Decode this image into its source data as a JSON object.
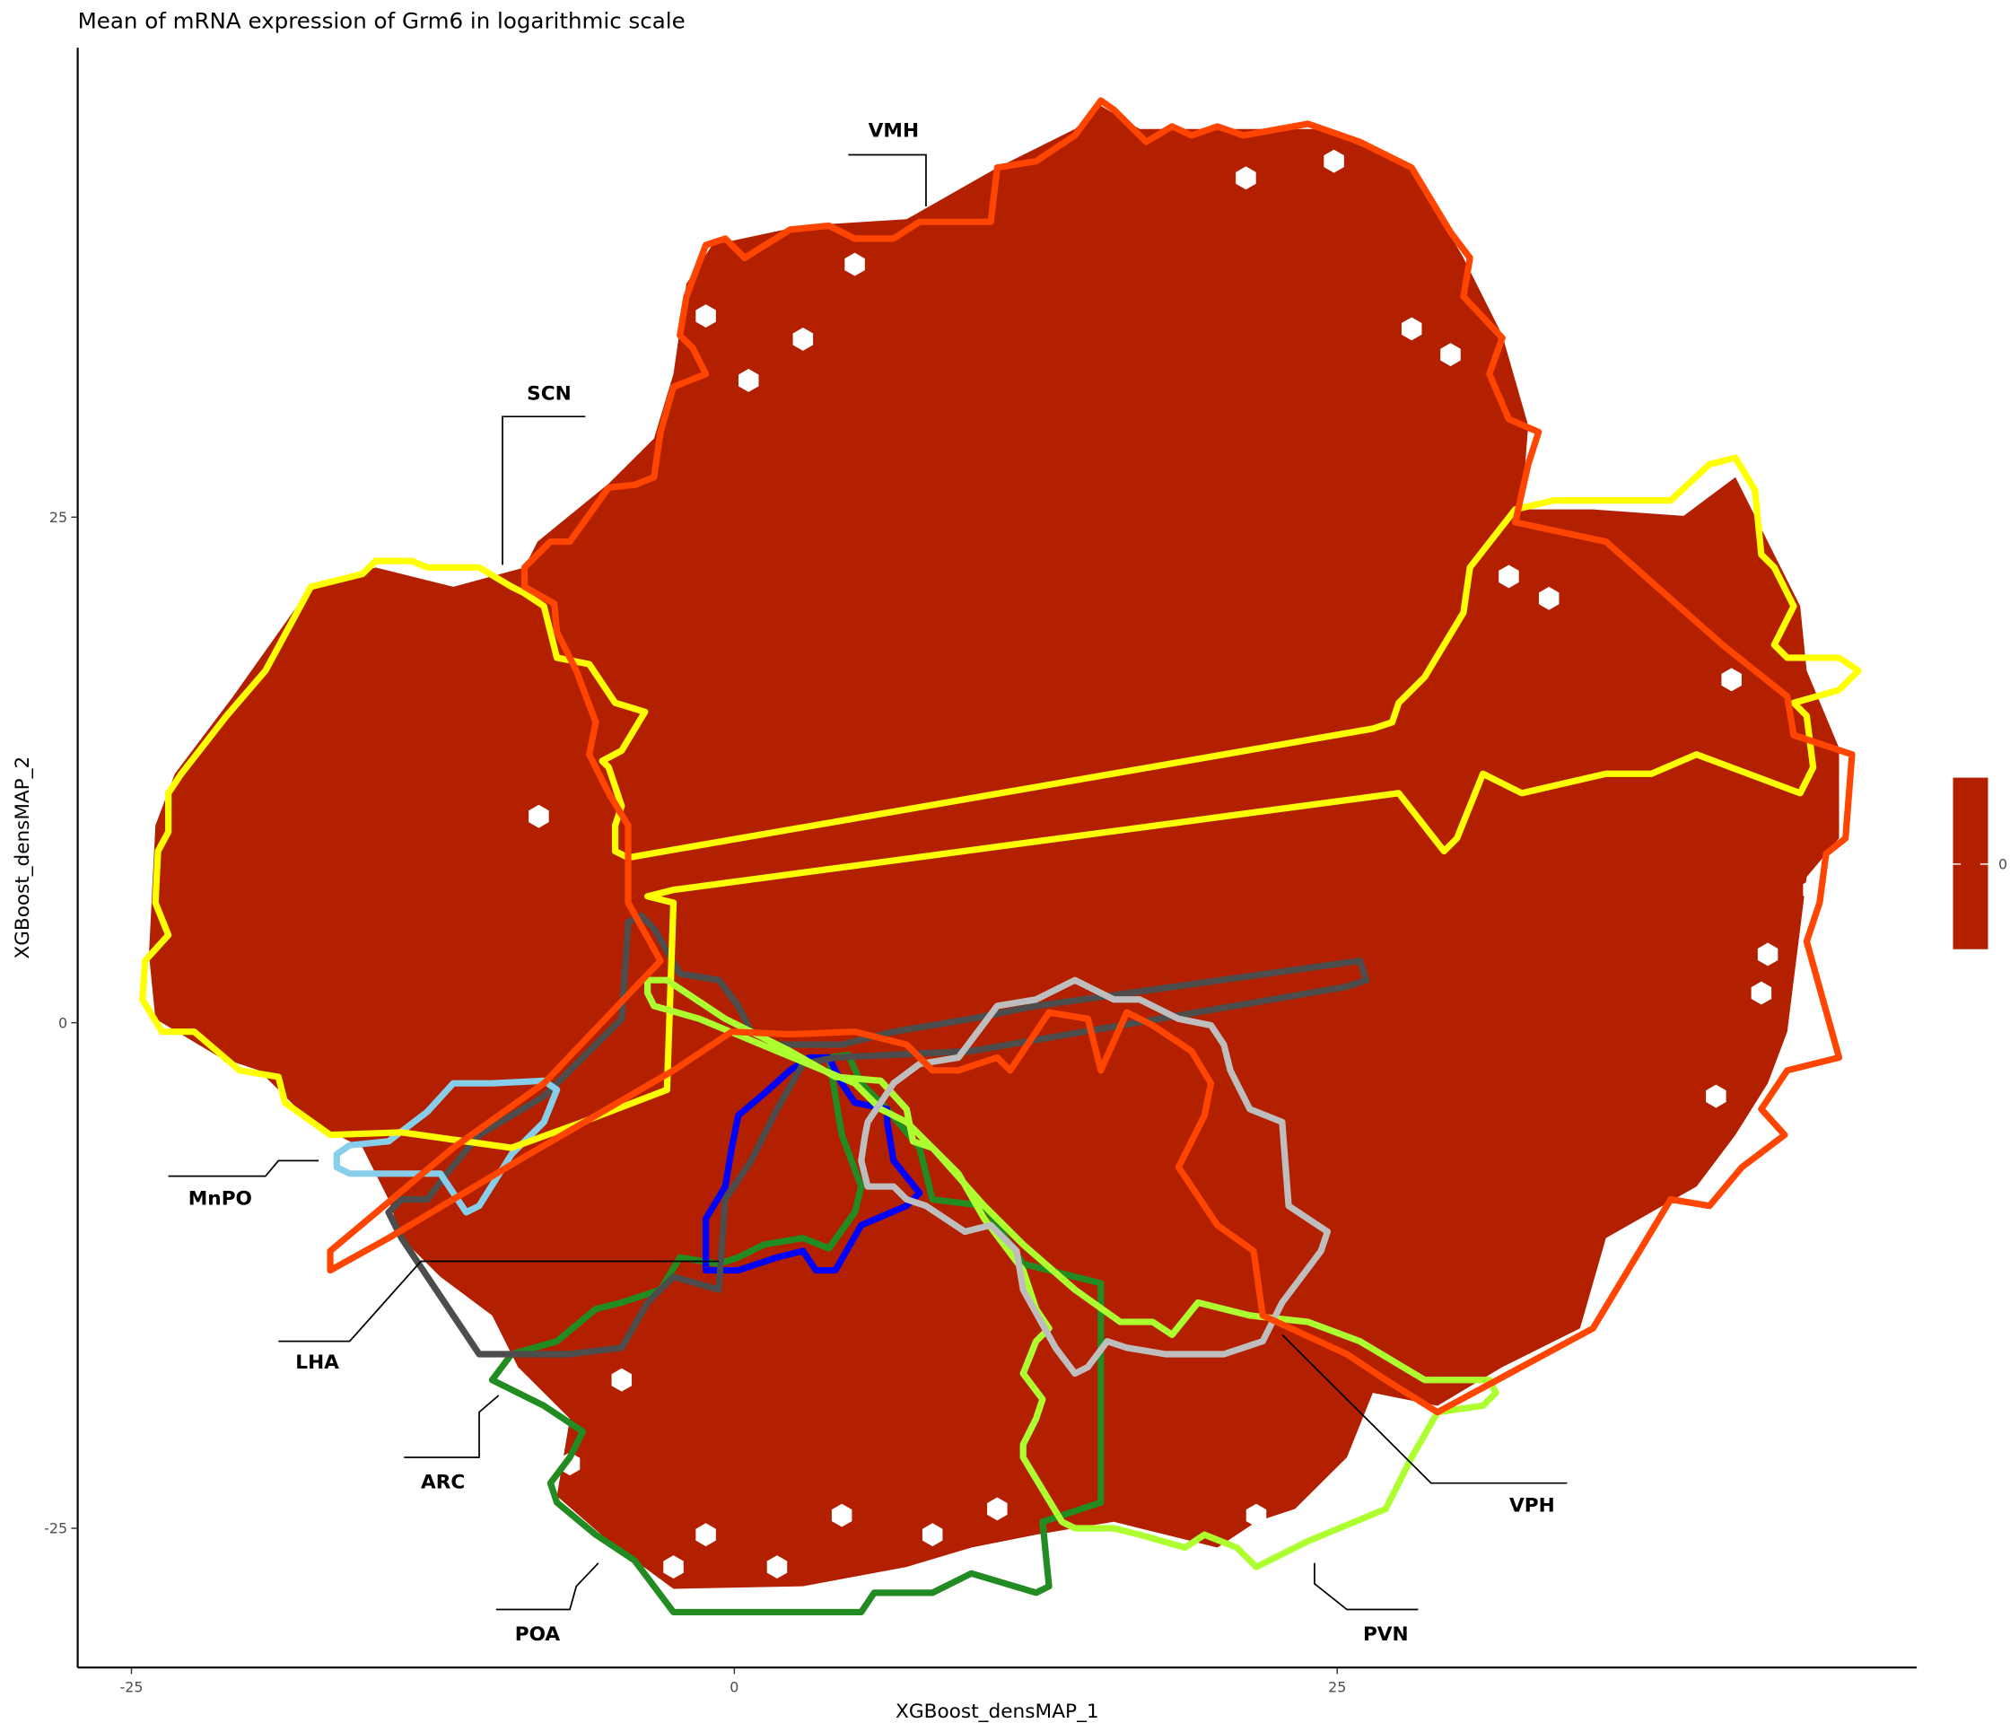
{
  "chart_data": {
    "type": "heatmap",
    "subtype": "hexbin",
    "title": "Mean of mRNA expression of Grm6 in logarithmic scale",
    "xlabel": "XGBoost_densMAP_1",
    "ylabel": "XGBoost_densMAP_2",
    "x_ticks": [
      "-25",
      "0",
      "25"
    ],
    "y_ticks": [
      "25",
      "0",
      "-25"
    ],
    "x_tick_values": [
      -25,
      0,
      25
    ],
    "y_tick_values": [
      25,
      0,
      -25
    ],
    "xlim": [
      -27,
      49
    ],
    "ylim": [
      -32,
      48
    ],
    "grid": false,
    "fill_color": "#B22000",
    "legend": {
      "placement": "right",
      "labels": [
        "0"
      ],
      "values": [
        0
      ],
      "color": "#B22000"
    },
    "regions": [
      {
        "name": "VMH",
        "color": "#FF4500"
      },
      {
        "name": "SCN",
        "color": "#FFFF00"
      },
      {
        "name": "MnPO",
        "color": "#87CEEB"
      },
      {
        "name": "LHA",
        "color": "#4D4D4D"
      },
      {
        "name": "ARC",
        "color": "#228B22"
      },
      {
        "name": "POA",
        "color": "#0000FF"
      },
      {
        "name": "PVN",
        "color": "#ADFF2F"
      },
      {
        "name": "VPH",
        "color": "#BEBEBE"
      }
    ]
  }
}
